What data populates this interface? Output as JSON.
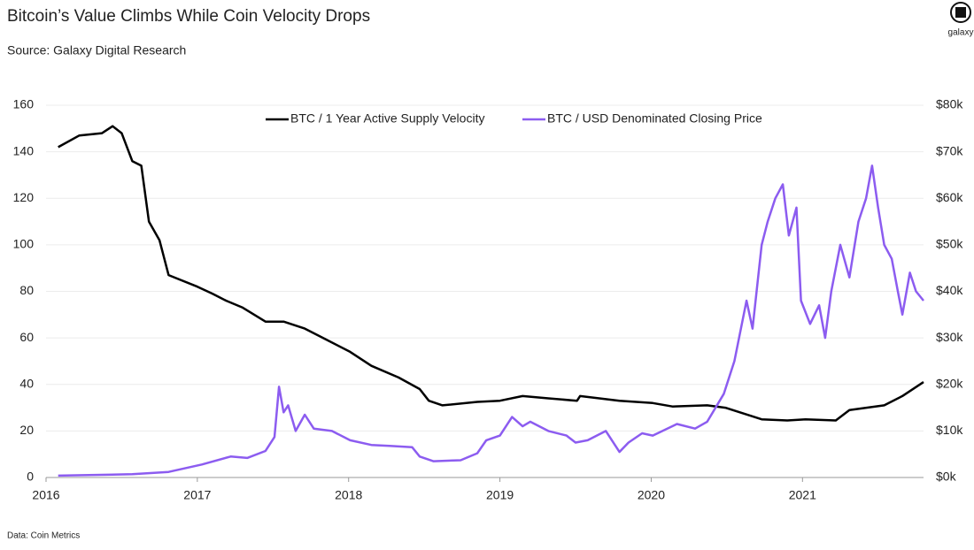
{
  "chart_data": {
    "type": "line",
    "title": "Bitcoin’s Value Climbs While Coin Velocity Drops",
    "subtitle": "Source: Galaxy Digital Research",
    "note": "Data: Coin Metrics",
    "brand": "galaxy",
    "xlim": [
      2016,
      2021.8
    ],
    "xticks": [
      2016,
      2017,
      2018,
      2019,
      2020,
      2021
    ],
    "ylim": [
      0,
      160
    ],
    "yticks": [
      0,
      20,
      40,
      60,
      80,
      100,
      120,
      140,
      160
    ],
    "y2lim": [
      0,
      80000
    ],
    "y2ticks": [
      {
        "value": 0,
        "label": "$0k"
      },
      {
        "value": 10000,
        "label": "$10k"
      },
      {
        "value": 20000,
        "label": "$20k"
      },
      {
        "value": 30000,
        "label": "$30k"
      },
      {
        "value": 40000,
        "label": "$40k"
      },
      {
        "value": 50000,
        "label": "$50k"
      },
      {
        "value": 60000,
        "label": "$60k"
      },
      {
        "value": 70000,
        "label": "$70k"
      },
      {
        "value": 80000,
        "label": "$80k"
      }
    ],
    "grid": true,
    "legend": "top",
    "series": [
      {
        "name": "BTC / 1 Year Active Supply Velocity",
        "color": "#000000",
        "x": [
          2016.08,
          2016.22,
          2016.37,
          2016.44,
          2016.5,
          2016.57,
          2016.63,
          2016.68,
          2016.75,
          2016.81,
          2017.0,
          2017.1,
          2017.19,
          2017.3,
          2017.45,
          2017.57,
          2017.71,
          2017.83,
          2018.01,
          2018.15,
          2018.33,
          2018.47,
          2018.53,
          2018.62,
          2018.85,
          2019.0,
          2019.15,
          2019.32,
          2019.51,
          2019.53,
          2019.79,
          2020.01,
          2020.14,
          2020.37,
          2020.49,
          2020.73,
          2020.9,
          2021.02,
          2021.22,
          2021.31,
          2021.54,
          2021.66,
          2021.8
        ],
        "values": [
          142,
          147,
          148,
          151,
          148,
          136,
          134,
          110,
          102,
          87,
          82,
          79,
          76,
          73,
          67,
          67,
          64,
          60,
          54,
          48,
          43,
          38,
          33,
          31,
          32.5,
          33,
          35,
          34,
          33,
          35,
          33,
          32,
          30.5,
          31,
          30,
          25,
          24.5,
          25,
          24.5,
          29,
          31,
          35,
          41
        ]
      },
      {
        "name": "BTC / USD Denominated Closing Price",
        "color": "#8c5cf0",
        "axis": "y2",
        "x": [
          2016.08,
          2016.57,
          2016.81,
          2017.03,
          2017.22,
          2017.33,
          2017.45,
          2017.51,
          2017.54,
          2017.57,
          2017.6,
          2017.65,
          2017.71,
          2017.77,
          2017.89,
          2018.01,
          2018.15,
          2018.27,
          2018.42,
          2018.47,
          2018.56,
          2018.74,
          2018.85,
          2018.91,
          2019.0,
          2019.08,
          2019.15,
          2019.2,
          2019.32,
          2019.44,
          2019.5,
          2019.58,
          2019.7,
          2019.79,
          2019.85,
          2019.94,
          2020.01,
          2020.17,
          2020.29,
          2020.37,
          2020.48,
          2020.55,
          2020.63,
          2020.67,
          2020.73,
          2020.77,
          2020.82,
          2020.87,
          2020.91,
          2020.96,
          2020.99,
          2021.05,
          2021.11,
          2021.15,
          2021.19,
          2021.25,
          2021.31,
          2021.37,
          2021.42,
          2021.46,
          2021.5,
          2021.54,
          2021.59,
          2021.63,
          2021.66,
          2021.71,
          2021.75,
          2021.8
        ],
        "values": [
          400,
          700,
          1200,
          2800,
          4500,
          4200,
          5700,
          8700,
          19500,
          14000,
          15500,
          10000,
          13500,
          10500,
          10000,
          8000,
          7000,
          6800,
          6500,
          4500,
          3500,
          3700,
          5200,
          8000,
          9000,
          13000,
          11000,
          12000,
          10000,
          9000,
          7500,
          8000,
          10000,
          5500,
          7500,
          9500,
          9000,
          11500,
          10500,
          12000,
          18000,
          25000,
          38000,
          32000,
          50000,
          55000,
          60000,
          63000,
          52000,
          58000,
          38000,
          33000,
          37000,
          30000,
          40000,
          50000,
          43000,
          55000,
          60000,
          67000,
          58000,
          50000,
          47000,
          40000,
          35000,
          44000,
          40000,
          38000
        ]
      }
    ]
  }
}
